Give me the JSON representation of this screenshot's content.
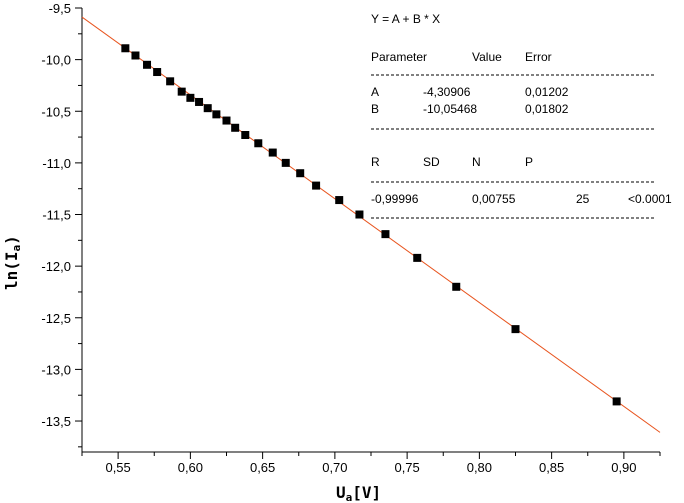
{
  "chart_data": {
    "type": "scatter",
    "xlabel_main": "U",
    "xlabel_sub": "a",
    "xlabel_unit": "[V]",
    "ylabel_main": "ln(I",
    "ylabel_sub": "a",
    "ylabel_end": ")",
    "xlim": [
      0.525,
      0.925
    ],
    "ylim": [
      -13.8,
      -9.5
    ],
    "x_ticks": [
      0.55,
      0.6,
      0.65,
      0.7,
      0.75,
      0.8,
      0.85,
      0.9
    ],
    "x_tick_labels": [
      "0,55",
      "0,60",
      "0,65",
      "0,70",
      "0,75",
      "0,80",
      "0,85",
      "0,90"
    ],
    "y_ticks": [
      -9.5,
      -10.0,
      -10.5,
      -11.0,
      -11.5,
      -12.0,
      -12.5,
      -13.0,
      -13.5
    ],
    "y_tick_labels": [
      "-9,5",
      "-10,0",
      "-10,5",
      "-11,0",
      "-11,5",
      "-12,0",
      "-12,5",
      "-13,0",
      "-13,5"
    ],
    "points": {
      "x": [
        0.555,
        0.562,
        0.57,
        0.577,
        0.586,
        0.594,
        0.6,
        0.606,
        0.612,
        0.618,
        0.625,
        0.631,
        0.638,
        0.647,
        0.657,
        0.666,
        0.676,
        0.687,
        0.703,
        0.717,
        0.735,
        0.757,
        0.784,
        0.825,
        0.895
      ],
      "y": [
        -9.89,
        -9.96,
        -10.05,
        -10.12,
        -10.21,
        -10.31,
        -10.37,
        -10.41,
        -10.47,
        -10.53,
        -10.59,
        -10.66,
        -10.73,
        -10.81,
        -10.9,
        -11.0,
        -11.1,
        -11.22,
        -11.36,
        -11.5,
        -11.69,
        -11.92,
        -12.2,
        -12.61,
        -13.31
      ]
    },
    "fit": {
      "label": "fit line",
      "intercept": -4.30906,
      "slope": -10.05468,
      "color": "#e8541e"
    },
    "marker_color": "#000000",
    "grid": false,
    "stats": {
      "equation": "Y = A + B * X",
      "param_headers": [
        "Parameter",
        "Value",
        "Error"
      ],
      "params": [
        {
          "name": "A",
          "value": "-4,30906",
          "error": "0,01202"
        },
        {
          "name": "B",
          "value": "-10,05468",
          "error": "0,01802"
        }
      ],
      "stat_headers": [
        "R",
        "SD",
        "N",
        "P"
      ],
      "stat_values": [
        "-0,99996",
        "0,00755",
        "25",
        "<0.0001"
      ]
    }
  }
}
